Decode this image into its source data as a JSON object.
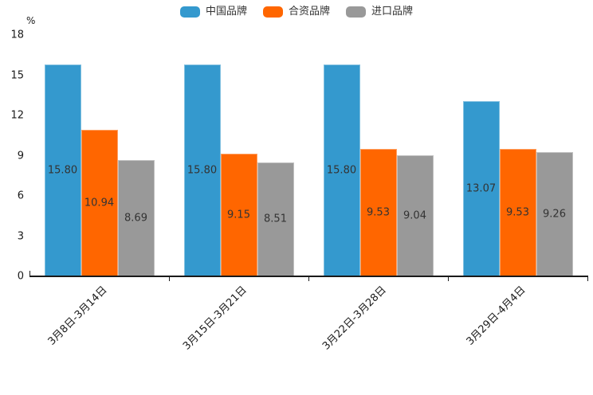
{
  "chart_data": {
    "type": "bar",
    "title": "",
    "ylabel": "%",
    "xlabel": "",
    "categories": [
      "3月8日-3月14日",
      "3月15日-3月21日",
      "3月22日-3月28日",
      "3月29日-4月4日"
    ],
    "series": [
      {
        "name": "中国品牌",
        "color": "#3499CE",
        "values": [
          15.8,
          15.8,
          15.8,
          13.07
        ]
      },
      {
        "name": "合资品牌",
        "color": "#FF6600",
        "values": [
          10.94,
          9.15,
          9.53,
          9.53
        ]
      },
      {
        "name": "进口品牌",
        "color": "#999999",
        "values": [
          8.69,
          8.51,
          9.04,
          9.26
        ]
      }
    ],
    "ylim": [
      0,
      18
    ],
    "yticks": [
      0,
      3,
      6,
      9,
      12,
      15,
      18
    ],
    "legend_position": "top-center",
    "grid": false,
    "bar_label_position": "inside-center",
    "bar_label_decimals": 2,
    "x_label_rotation_deg": 45
  },
  "colors": {
    "axis": "#1a1a1a",
    "tick_label": "#1a1a1a",
    "value_label": "#333333",
    "background": "#ffffff"
  }
}
